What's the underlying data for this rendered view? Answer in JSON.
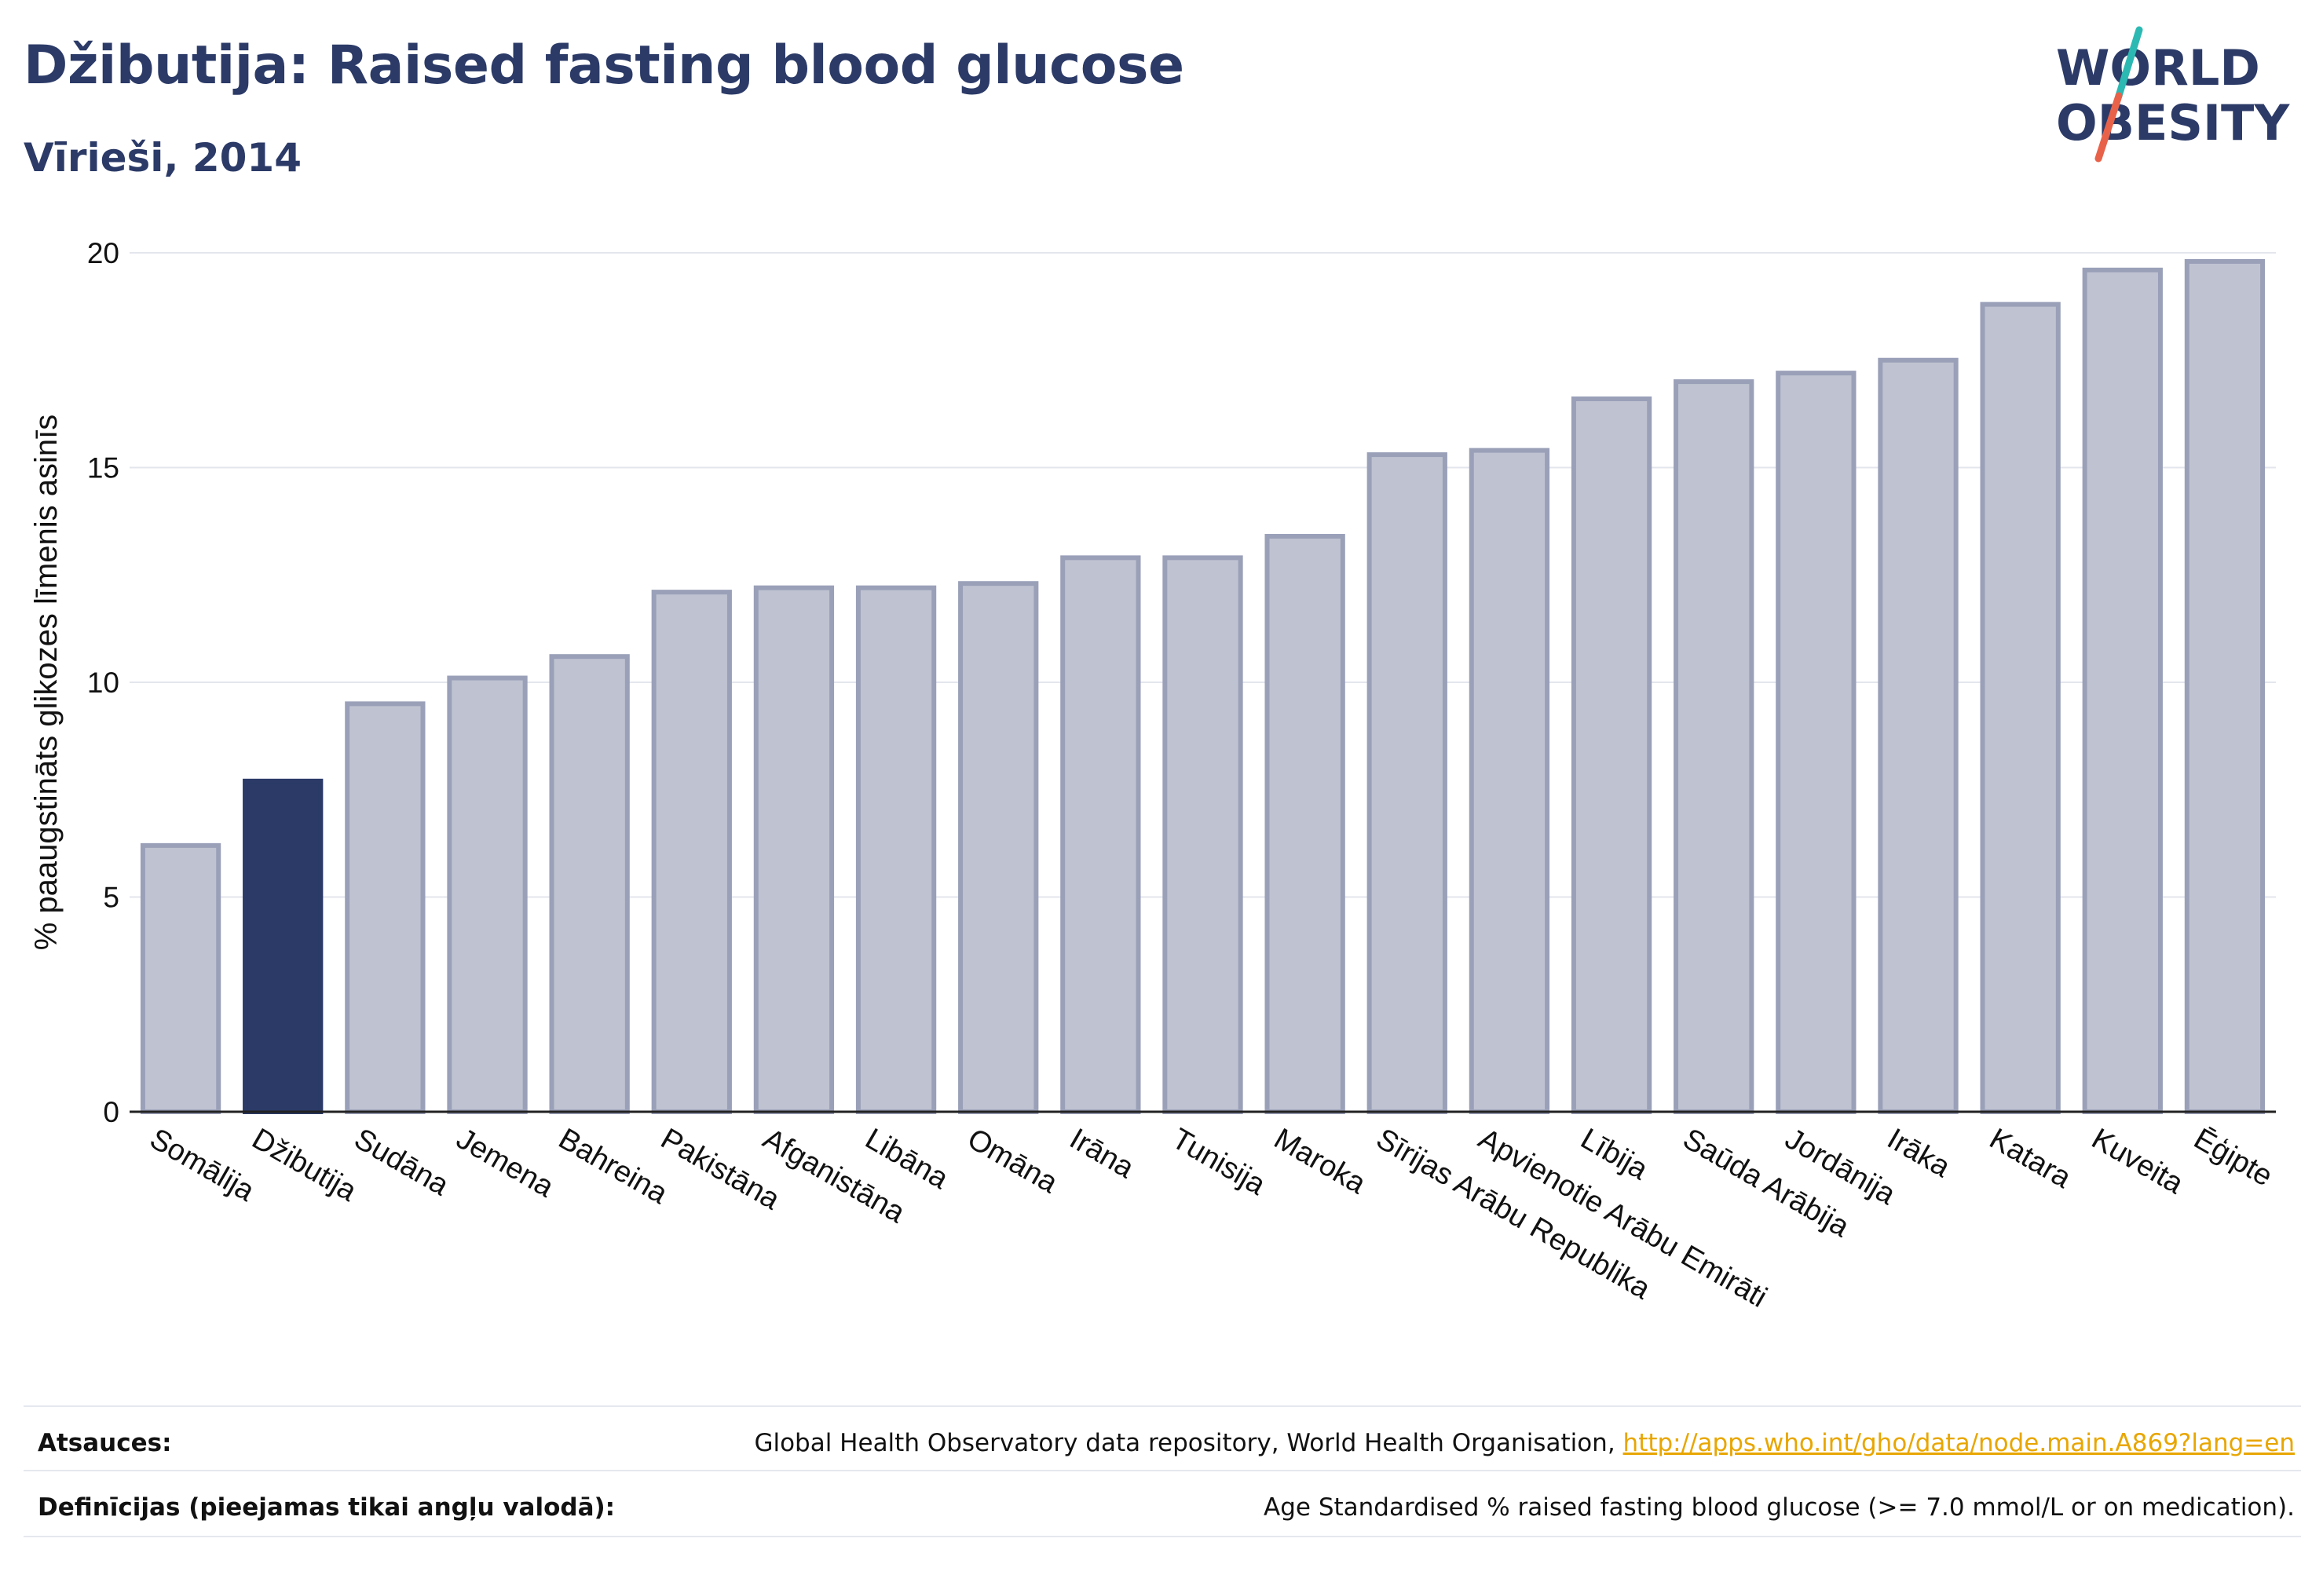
{
  "header": {
    "title": "Džibutija: Raised fasting blood glucose",
    "subtitle": "Vīrieši, 2014"
  },
  "logo": {
    "line1": "WORLD",
    "line2": "OBESITY"
  },
  "colors": {
    "highlight": "#2b3a67",
    "bar": "#bfc3d1",
    "bar_border": "#9aa0b8",
    "title": "#2b3a67",
    "link": "#e8a600"
  },
  "chart_data": {
    "type": "bar",
    "ylabel": "% paaugstināts glikozes līmenis asinīs",
    "ylim": [
      0,
      20
    ],
    "yticks": [
      0,
      5,
      10,
      15,
      20
    ],
    "grid": true,
    "highlight": "Džibutija",
    "categories": [
      "Somālija",
      "Džibutija",
      "Sudāna",
      "Jemena",
      "Bahreina",
      "Pakistāna",
      "Afganistāna",
      "Libāna",
      "Omāna",
      "Irāna",
      "Tunisija",
      "Maroka",
      "Sīrijas Arābu Republika",
      "Apvienotie Arābu Emirāti",
      "Lībija",
      "Saūda Arābija",
      "Jordānija",
      "Irāka",
      "Katara",
      "Kuveita",
      "Ēģipte"
    ],
    "values": [
      6.2,
      7.7,
      9.5,
      10.1,
      10.6,
      12.1,
      12.2,
      12.2,
      12.3,
      12.9,
      12.9,
      13.4,
      15.3,
      15.4,
      16.6,
      17.0,
      17.2,
      17.5,
      18.8,
      19.6,
      19.8
    ]
  },
  "footer": {
    "sources_label": "Atsauces:",
    "sources_text": "Global Health Observatory data repository, World Health Organisation, ",
    "sources_link": "http://apps.who.int/gho/data/node.main.A869?lang=en",
    "definitions_label": "Definīcijas (pieejamas tikai angļu valodā):",
    "definitions_text": "Age Standardised % raised fasting blood glucose (>= 7.0 mmol/L or on medication)."
  }
}
